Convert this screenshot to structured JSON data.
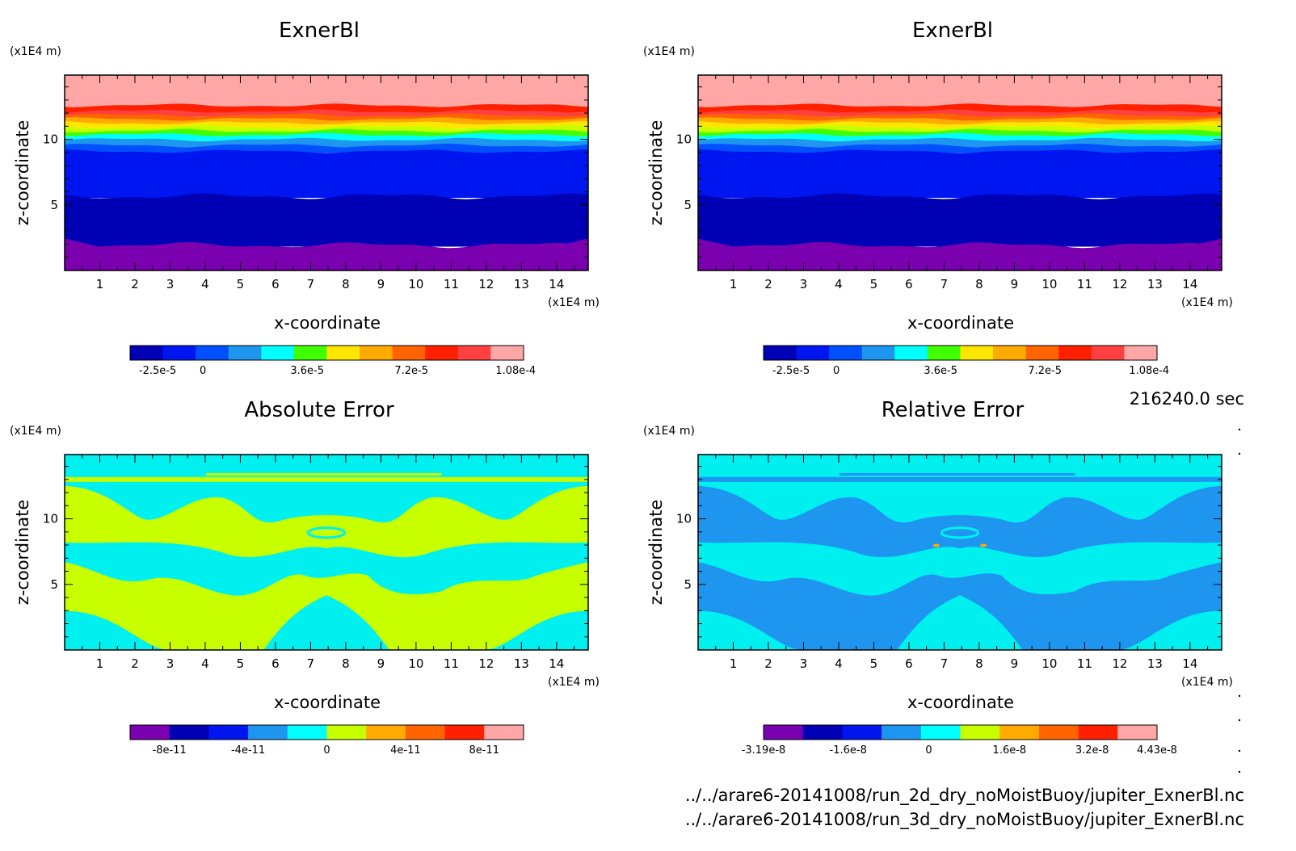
{
  "colors": {
    "rainbow13": [
      "#7b00b0",
      "#0000b4",
      "#0016f0",
      "#0050ff",
      "#1e96f0",
      "#00ffff",
      "#40ff00",
      "#c8ff00",
      "#ffe600",
      "#ffaa00",
      "#ff6400",
      "#ff2000",
      "#ffa6a6"
    ],
    "exner": {
      "top": "#ffa6a6",
      "purple": "#7b00b0",
      "navy": "#0000b4",
      "blue": "#0016f0"
    },
    "abs": {
      "a": "#00f0f0",
      "b": "#c8ff00"
    },
    "rel": {
      "a": "#1e96f0",
      "b": "#00f0f0"
    }
  },
  "chart_data": [
    {
      "type": "heatmap",
      "title": "ExnerBl",
      "xlabel": "x-coordinate",
      "ylabel": "z-coordinate",
      "x_unit": "(x1E4 m)",
      "y_unit": "(x1E4 m)",
      "xlim": [
        0,
        14.9
      ],
      "ylim": [
        0,
        14.9
      ],
      "xticks": [
        "1",
        "2",
        "3",
        "4",
        "5",
        "6",
        "7",
        "8",
        "9",
        "10",
        "11",
        "12",
        "13",
        "14"
      ],
      "yticks": [
        "5",
        "10"
      ],
      "colorbar": {
        "ticks": [
          "-2.5e-5",
          "0",
          "3.6e-5",
          "7.2e-5",
          "1.08e-4"
        ]
      }
    },
    {
      "type": "heatmap",
      "title": "ExnerBl",
      "xlabel": "x-coordinate",
      "ylabel": "z-coordinate",
      "x_unit": "(x1E4 m)",
      "y_unit": "(x1E4 m)",
      "xlim": [
        0,
        14.9
      ],
      "ylim": [
        0,
        14.9
      ],
      "xticks": [
        "1",
        "2",
        "3",
        "4",
        "5",
        "6",
        "7",
        "8",
        "9",
        "10",
        "11",
        "12",
        "13",
        "14"
      ],
      "yticks": [
        "5",
        "10"
      ],
      "colorbar": {
        "ticks": [
          "-2.5e-5",
          "0",
          "3.6e-5",
          "7.2e-5",
          "1.08e-4"
        ]
      }
    },
    {
      "type": "heatmap",
      "title": "Absolute Error",
      "xlabel": "x-coordinate",
      "ylabel": "z-coordinate",
      "x_unit": "(x1E4 m)",
      "y_unit": "(x1E4 m)",
      "xlim": [
        0,
        14.9
      ],
      "ylim": [
        0,
        14.9
      ],
      "xticks": [
        "1",
        "2",
        "3",
        "4",
        "5",
        "6",
        "7",
        "8",
        "9",
        "10",
        "11",
        "12",
        "13",
        "14"
      ],
      "yticks": [
        "5",
        "10"
      ],
      "colorbar": {
        "ticks": [
          "-8e-11",
          "-4e-11",
          "0",
          "4e-11",
          "8e-11"
        ]
      }
    },
    {
      "type": "heatmap",
      "title": "Relative Error",
      "xlabel": "x-coordinate",
      "ylabel": "z-coordinate",
      "x_unit": "(x1E4 m)",
      "y_unit": "(x1E4 m)",
      "xlim": [
        0,
        14.9
      ],
      "ylim": [
        0,
        14.9
      ],
      "xticks": [
        "1",
        "2",
        "3",
        "4",
        "5",
        "6",
        "7",
        "8",
        "9",
        "10",
        "11",
        "12",
        "13",
        "14"
      ],
      "yticks": [
        "5",
        "10"
      ],
      "colorbar": {
        "ticks": [
          "-3.19e-8",
          "-1.6e-8",
          "0",
          "1.6e-8",
          "3.2e-8",
          "4.43e-8"
        ]
      }
    }
  ],
  "info": {
    "time": "216240.0 sec",
    "file1": "../../arare6-20141008/run_2d_dry_noMoistBuoy/jupiter_ExnerBl.nc",
    "file2": "../../arare6-20141008/run_3d_dry_noMoistBuoy/jupiter_ExnerBl.nc"
  }
}
